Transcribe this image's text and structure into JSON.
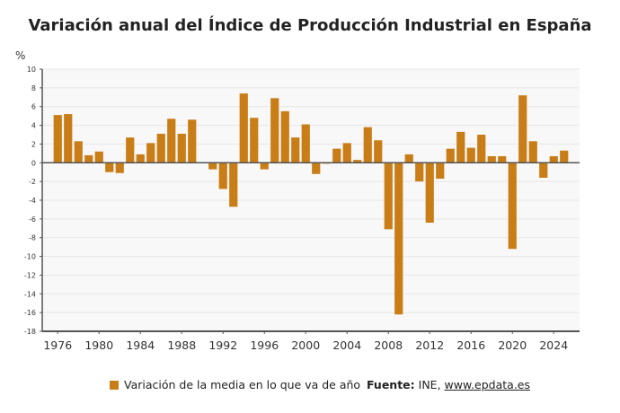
{
  "chart_data": {
    "type": "bar",
    "title": "Variación anual del Índice de Producción Industrial en España",
    "ylabel": "%",
    "xlabel": "",
    "ylim": [
      -18,
      10
    ],
    "xlim": [
      1974.5,
      2026.5
    ],
    "yticks": [
      10,
      8,
      6,
      4,
      2,
      0,
      -2,
      -4,
      -6,
      -8,
      -10,
      -12,
      -14,
      -16,
      -18
    ],
    "xticks": [
      1976,
      1980,
      1984,
      1988,
      1992,
      1996,
      2000,
      2004,
      2008,
      2012,
      2016,
      2020,
      2024
    ],
    "grid": true,
    "legend_position": "bottom",
    "series": [
      {
        "name": "Variación de la media en lo que va de año",
        "color": "#c97d17",
        "x": [
          1976,
          1977,
          1978,
          1979,
          1980,
          1981,
          1982,
          1983,
          1984,
          1985,
          1986,
          1987,
          1988,
          1989,
          1990,
          1991,
          1992,
          1993,
          1994,
          1995,
          1996,
          1997,
          1998,
          1999,
          2000,
          2001,
          2002,
          2003,
          2004,
          2005,
          2006,
          2007,
          2008,
          2009,
          2010,
          2011,
          2012,
          2013,
          2014,
          2015,
          2016,
          2017,
          2018,
          2019,
          2020,
          2021,
          2022,
          2023,
          2024,
          2025
        ],
        "values": [
          5.1,
          5.2,
          2.3,
          0.8,
          1.2,
          -1.0,
          -1.1,
          2.7,
          0.9,
          2.1,
          3.1,
          4.7,
          3.1,
          4.6,
          0.0,
          -0.7,
          -2.8,
          -4.7,
          7.4,
          4.8,
          -0.7,
          6.9,
          5.5,
          2.7,
          4.1,
          -1.2,
          -0.1,
          1.5,
          2.1,
          0.3,
          3.8,
          2.4,
          -7.1,
          -16.2,
          0.9,
          -2.0,
          -6.4,
          -1.7,
          1.5,
          3.3,
          1.6,
          3.0,
          0.7,
          0.7,
          -9.2,
          7.2,
          2.3,
          -1.6,
          0.7,
          1.3
        ]
      }
    ]
  },
  "legend": {
    "label": "Variación de la media en lo que va de año"
  },
  "source": {
    "label": "Fuente:",
    "text": "INE,",
    "link": "www.epdata.es"
  }
}
